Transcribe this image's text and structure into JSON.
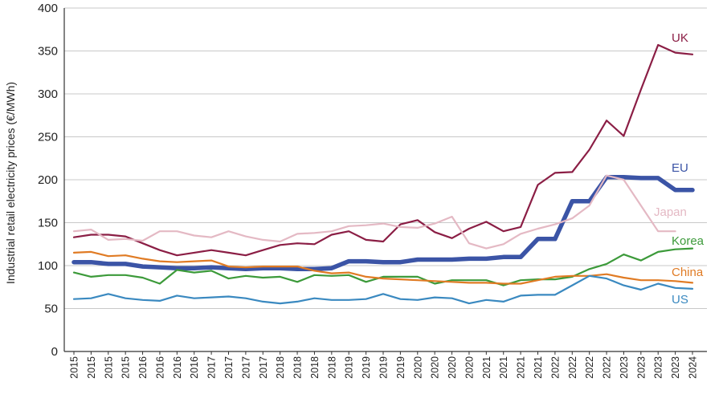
{
  "chart_data": {
    "type": "line",
    "title": "",
    "ylabel": "Industrial retail electricity prices (€/MWh)",
    "xlabel": "",
    "ylim": [
      0,
      400
    ],
    "yticks": [
      0,
      50,
      100,
      150,
      200,
      250,
      300,
      350,
      400
    ],
    "grid": "horizontal",
    "legend": "labels at line ends (right)",
    "categories": [
      "2015",
      "2015",
      "2015",
      "2015",
      "2016",
      "2016",
      "2016",
      "2016",
      "2017",
      "2017",
      "2017",
      "2017",
      "2018",
      "2018",
      "2018",
      "2018",
      "2019",
      "2019",
      "2019",
      "2019",
      "2020",
      "2020",
      "2020",
      "2020",
      "2021",
      "2021",
      "2021",
      "2021",
      "2022",
      "2022",
      "2022",
      "2022",
      "2023",
      "2023",
      "2023",
      "2023",
      "2024"
    ],
    "series": [
      {
        "name": "UK",
        "color": "#8b1e45",
        "width": 2.2,
        "values": [
          133,
          136,
          136,
          134,
          126,
          118,
          112,
          115,
          118,
          115,
          112,
          118,
          124,
          126,
          125,
          136,
          140,
          130,
          128,
          148,
          153,
          139,
          132,
          143,
          151,
          140,
          145,
          194,
          208,
          209,
          235,
          269,
          251,
          305,
          357,
          348,
          346
        ]
      },
      {
        "name": "EU",
        "color": "#3b54a6",
        "width": 5.5,
        "values": [
          104,
          104,
          102,
          102,
          99,
          98,
          97,
          97,
          98,
          97,
          96,
          97,
          97,
          96,
          96,
          97,
          105,
          105,
          104,
          104,
          107,
          107,
          107,
          108,
          108,
          110,
          110,
          131,
          131,
          175,
          175,
          203,
          203,
          202,
          202,
          188,
          188
        ]
      },
      {
        "name": "Japan",
        "color": "#e4b9c4",
        "width": 2.2,
        "values": [
          140,
          142,
          130,
          131,
          129,
          140,
          140,
          135,
          133,
          140,
          134,
          130,
          128,
          137,
          138,
          140,
          146,
          147,
          149,
          145,
          144,
          149,
          157,
          126,
          120,
          125,
          137,
          143,
          148,
          155,
          170,
          205,
          200,
          170,
          140,
          140,
          null
        ]
      },
      {
        "name": "Korea",
        "color": "#3c9a3a",
        "width": 2.2,
        "values": [
          92,
          87,
          89,
          89,
          86,
          79,
          95,
          92,
          94,
          85,
          88,
          86,
          87,
          81,
          89,
          88,
          89,
          81,
          87,
          87,
          87,
          79,
          83,
          83,
          83,
          77,
          83,
          84,
          84,
          87,
          96,
          102,
          113,
          106,
          116,
          119,
          120
        ]
      },
      {
        "name": "China",
        "color": "#e07b24",
        "width": 2.2,
        "values": [
          115,
          116,
          111,
          112,
          108,
          105,
          104,
          105,
          106,
          99,
          98,
          99,
          99,
          99,
          94,
          91,
          92,
          87,
          85,
          84,
          83,
          82,
          81,
          80,
          80,
          79,
          79,
          83,
          87,
          88,
          88,
          90,
          86,
          83,
          83,
          82,
          80
        ]
      },
      {
        "name": "US",
        "color": "#3a89c0",
        "width": 2.2,
        "values": [
          61,
          62,
          67,
          62,
          60,
          59,
          65,
          62,
          63,
          64,
          62,
          58,
          56,
          58,
          62,
          60,
          60,
          61,
          67,
          61,
          60,
          63,
          62,
          56,
          60,
          58,
          65,
          66,
          66,
          77,
          88,
          85,
          77,
          72,
          79,
          74,
          73
        ]
      }
    ]
  }
}
